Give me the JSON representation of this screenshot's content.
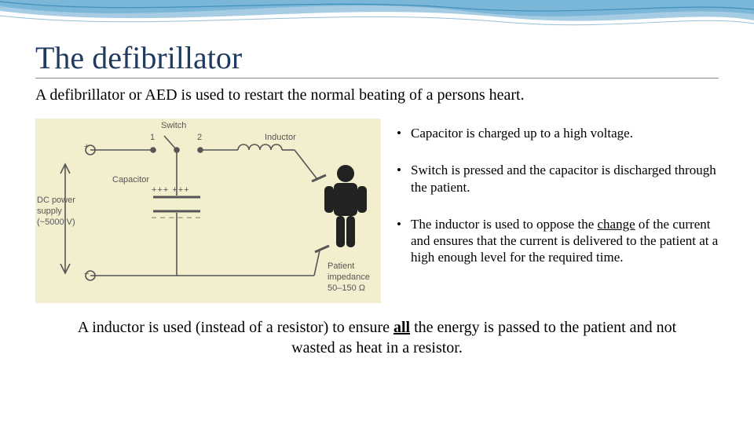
{
  "title": "The defibrillator",
  "subtitle": "A defibrillator or AED is used to restart the normal beating of a persons heart.",
  "bullets": [
    "Capacitor is charged up to a high voltage.",
    "Switch is pressed and the capacitor is discharged through the patient.",
    "The inductor is used to oppose the <u>change</u> of the current and ensures that the current is delivered to the patient at a high enough level for the required time."
  ],
  "footer": "A inductor is used (instead of a resistor) to ensure <b><u>all</u></b> the energy is passed to the patient and not wasted as heat in a resistor.",
  "diagram": {
    "bg": "#f3efce",
    "line_color": "#555555",
    "label_color": "#555555",
    "labels": {
      "switch": "Switch",
      "one": "1",
      "two": "2",
      "inductor": "Inductor",
      "capacitor": "Capacitor",
      "dc1": "DC power",
      "dc2": "supply",
      "dc3": "(~5000 V)",
      "patient1": "Patient",
      "patient2": "impedance",
      "patient3": "50–150 Ω",
      "plus": "+",
      "minus": "−",
      "cap_plus": "+++  +++",
      "cap_minus": "– – –   – – –"
    }
  },
  "colors": {
    "title": "#1f3a5f",
    "text": "#000000",
    "wave1": "#6fb8d8",
    "wave2": "#3a8fc0",
    "wave3": "#2a7fb0"
  },
  "fonts": {
    "title_size": 40,
    "body_size": 20,
    "bullet_size": 17,
    "diagram_label_size": 11
  }
}
